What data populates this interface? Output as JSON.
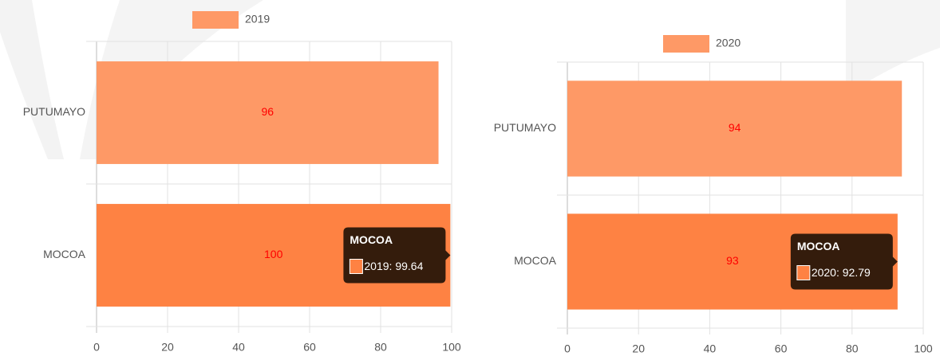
{
  "chart_data": [
    {
      "type": "bar",
      "orientation": "horizontal",
      "series_name": "2019",
      "categories": [
        "PUTUMAYO",
        "MOCOA"
      ],
      "values": [
        96.3,
        99.64
      ],
      "value_labels": [
        "96",
        "100"
      ],
      "colors": [
        "#fe9966",
        "#fe8243"
      ],
      "legend_color": "#fe9966",
      "xlim": [
        0,
        100
      ],
      "xticks": [
        0,
        20,
        40,
        60,
        80,
        100
      ],
      "grid": true,
      "tooltip": {
        "title": "MOCOA",
        "text": "2019: 99.64"
      }
    },
    {
      "type": "bar",
      "orientation": "horizontal",
      "series_name": "2020",
      "categories": [
        "PUTUMAYO",
        "MOCOA"
      ],
      "values": [
        94,
        92.79
      ],
      "value_labels": [
        "94",
        "93"
      ],
      "colors": [
        "#fe9966",
        "#fe8243"
      ],
      "legend_color": "#fe9966",
      "xlim": [
        0,
        100
      ],
      "xticks": [
        0,
        20,
        40,
        60,
        80,
        100
      ],
      "grid": true,
      "tooltip": {
        "title": "MOCOA",
        "text": "2020: 92.79"
      }
    }
  ]
}
